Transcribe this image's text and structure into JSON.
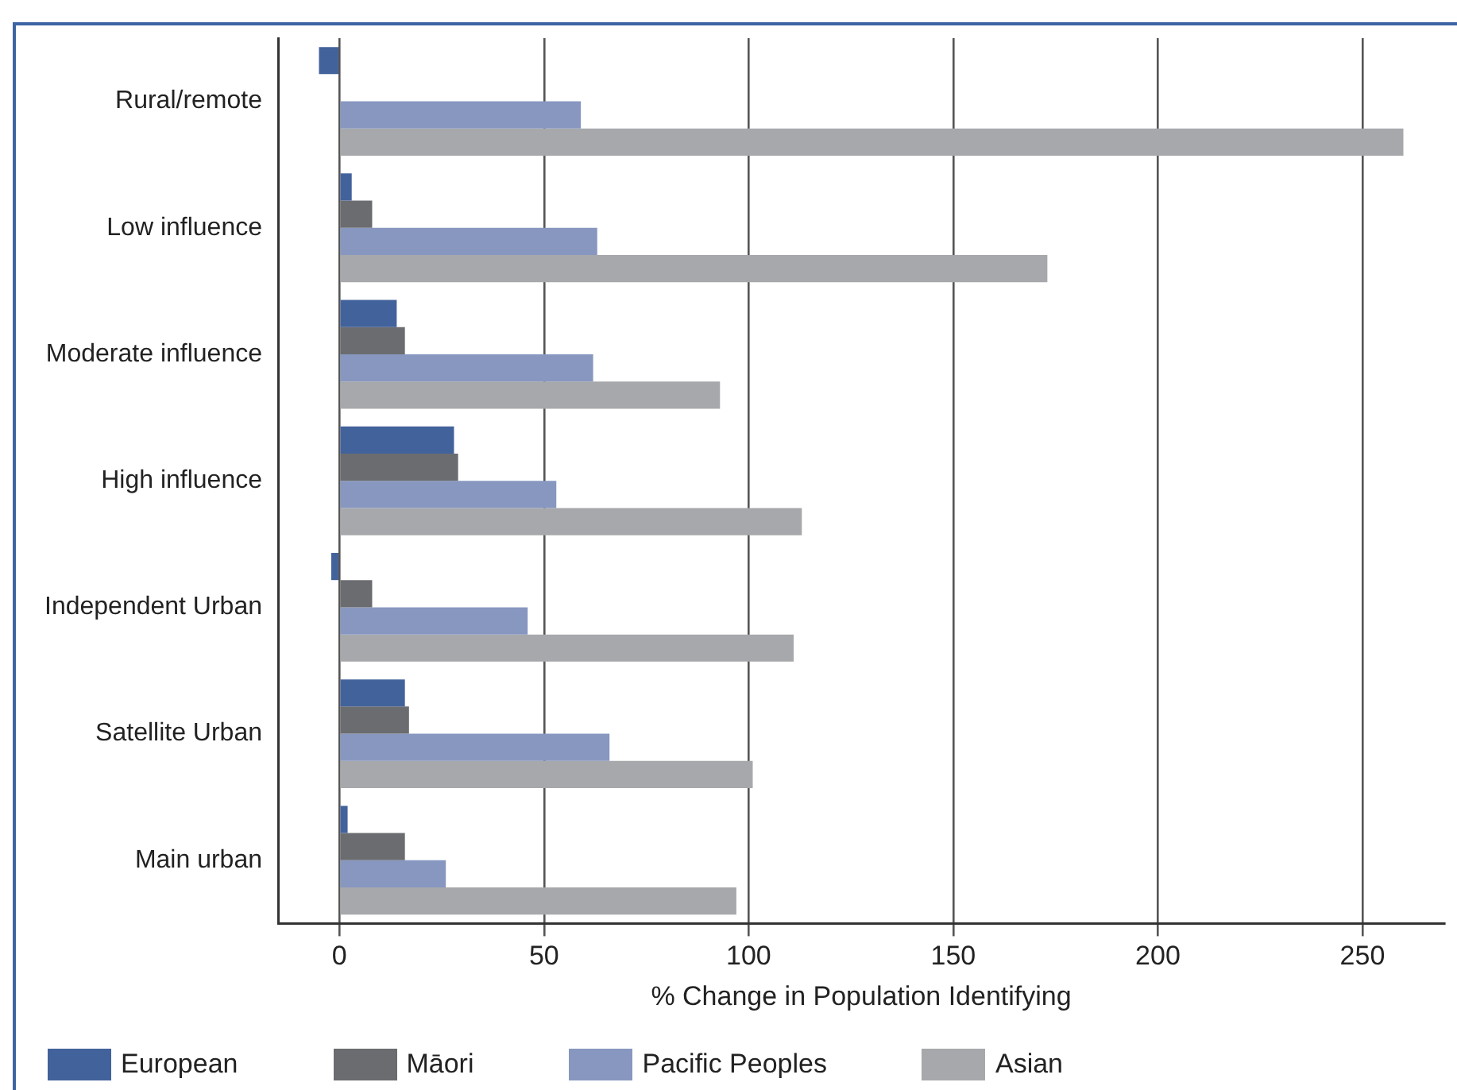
{
  "chart_data": {
    "type": "bar",
    "orientation": "horizontal",
    "xlabel": "% Change in Population Identifying",
    "categories": [
      "Rural/remote",
      "Low influence",
      "Moderate influence",
      "High influence",
      "Independent Urban",
      "Satellite Urban",
      "Main urban"
    ],
    "series": [
      {
        "name": "European",
        "color": "#42629b",
        "values": [
          -5,
          3,
          14,
          28,
          -2,
          16,
          2
        ]
      },
      {
        "name": "Māori",
        "color": "#6b6c70",
        "values": [
          null,
          8,
          16,
          29,
          8,
          17,
          16
        ]
      },
      {
        "name": "Pacific Peoples",
        "color": "#8797c0",
        "values": [
          59,
          63,
          62,
          53,
          46,
          66,
          26
        ]
      },
      {
        "name": "Asian",
        "color": "#a7a8ac",
        "values": [
          260,
          173,
          93,
          113,
          111,
          101,
          97
        ]
      }
    ],
    "xlim": [
      -15,
      270
    ],
    "xticks": [
      0,
      50,
      100,
      150,
      200,
      250
    ],
    "grid": "x",
    "legend": "bottom"
  }
}
